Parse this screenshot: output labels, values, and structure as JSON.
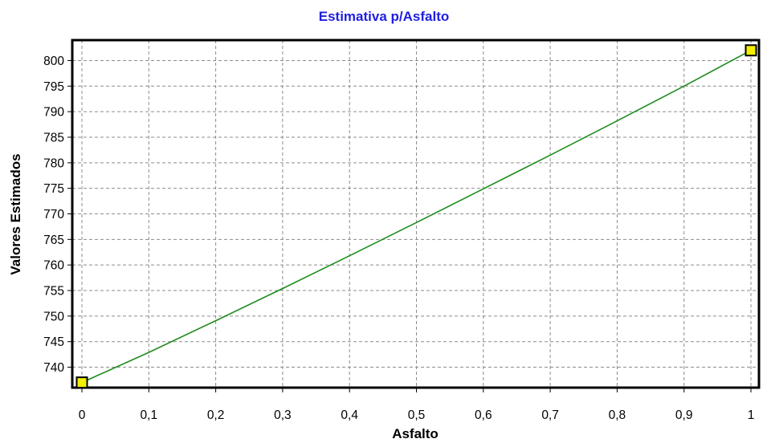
{
  "chart_data": {
    "type": "line",
    "title": "Estimativa p/Asfalto",
    "xlabel": "Asfalto",
    "ylabel": "Valores Estimados",
    "xlim": [
      0,
      1
    ],
    "ylim": [
      736,
      804
    ],
    "x_ticks": [
      "0",
      "0,1",
      "0,2",
      "0,3",
      "0,4",
      "0,5",
      "0,6",
      "0,7",
      "0,8",
      "0,9",
      "1"
    ],
    "y_ticks": [
      "740",
      "745",
      "750",
      "755",
      "760",
      "765",
      "770",
      "775",
      "780",
      "785",
      "790",
      "795",
      "800"
    ],
    "grid": true,
    "series": [
      {
        "color": "#1e8c1e",
        "x": [
          0,
          0.1,
          0.2,
          0.3,
          0.4,
          0.5,
          0.6,
          0.7,
          0.8,
          0.9,
          1
        ],
        "y": [
          737,
          742.9,
          749.1,
          755.4,
          761.8,
          768.3,
          774.9,
          781.5,
          788.2,
          795.0,
          802
        ]
      }
    ],
    "endpoints": [
      {
        "x": 0,
        "y": 737,
        "color": "#f2ef00"
      },
      {
        "x": 1,
        "y": 802,
        "color": "#f2ef00"
      }
    ]
  }
}
